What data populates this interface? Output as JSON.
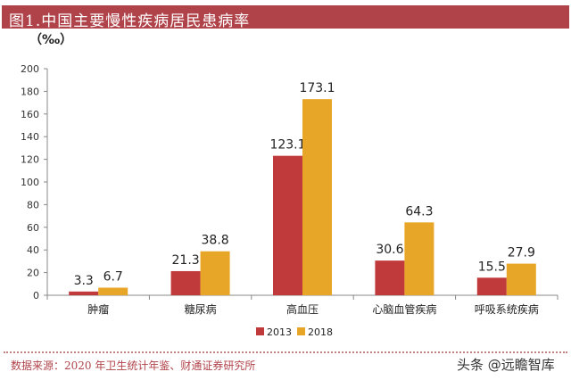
{
  "header": {
    "title": "图1.中国主要慢性疾病居民患病率"
  },
  "footer": {
    "source": "数据来源：2020 年卫生统计年鉴、财通证券研究所",
    "watermark": "头条 @远瞻智库"
  },
  "colors": {
    "title_bg": "#b0434a",
    "series_2013": "#c0393b",
    "series_2018": "#e8a628"
  },
  "chart_data": {
    "type": "bar",
    "unit": "（‰）",
    "categories": [
      "肿瘤",
      "糖尿病",
      "高血压",
      "心脑血管疾病",
      "呼吸系统疾病"
    ],
    "series": [
      {
        "name": "2013",
        "values": [
          3.3,
          21.3,
          123.1,
          30.6,
          15.5
        ]
      },
      {
        "name": "2018",
        "values": [
          6.7,
          38.8,
          173.1,
          64.3,
          27.9
        ]
      }
    ],
    "ylim": [
      0,
      200
    ],
    "yticks": [
      0,
      20,
      40,
      60,
      80,
      100,
      120,
      140,
      160,
      180,
      200
    ],
    "legend": "bottom-center"
  }
}
